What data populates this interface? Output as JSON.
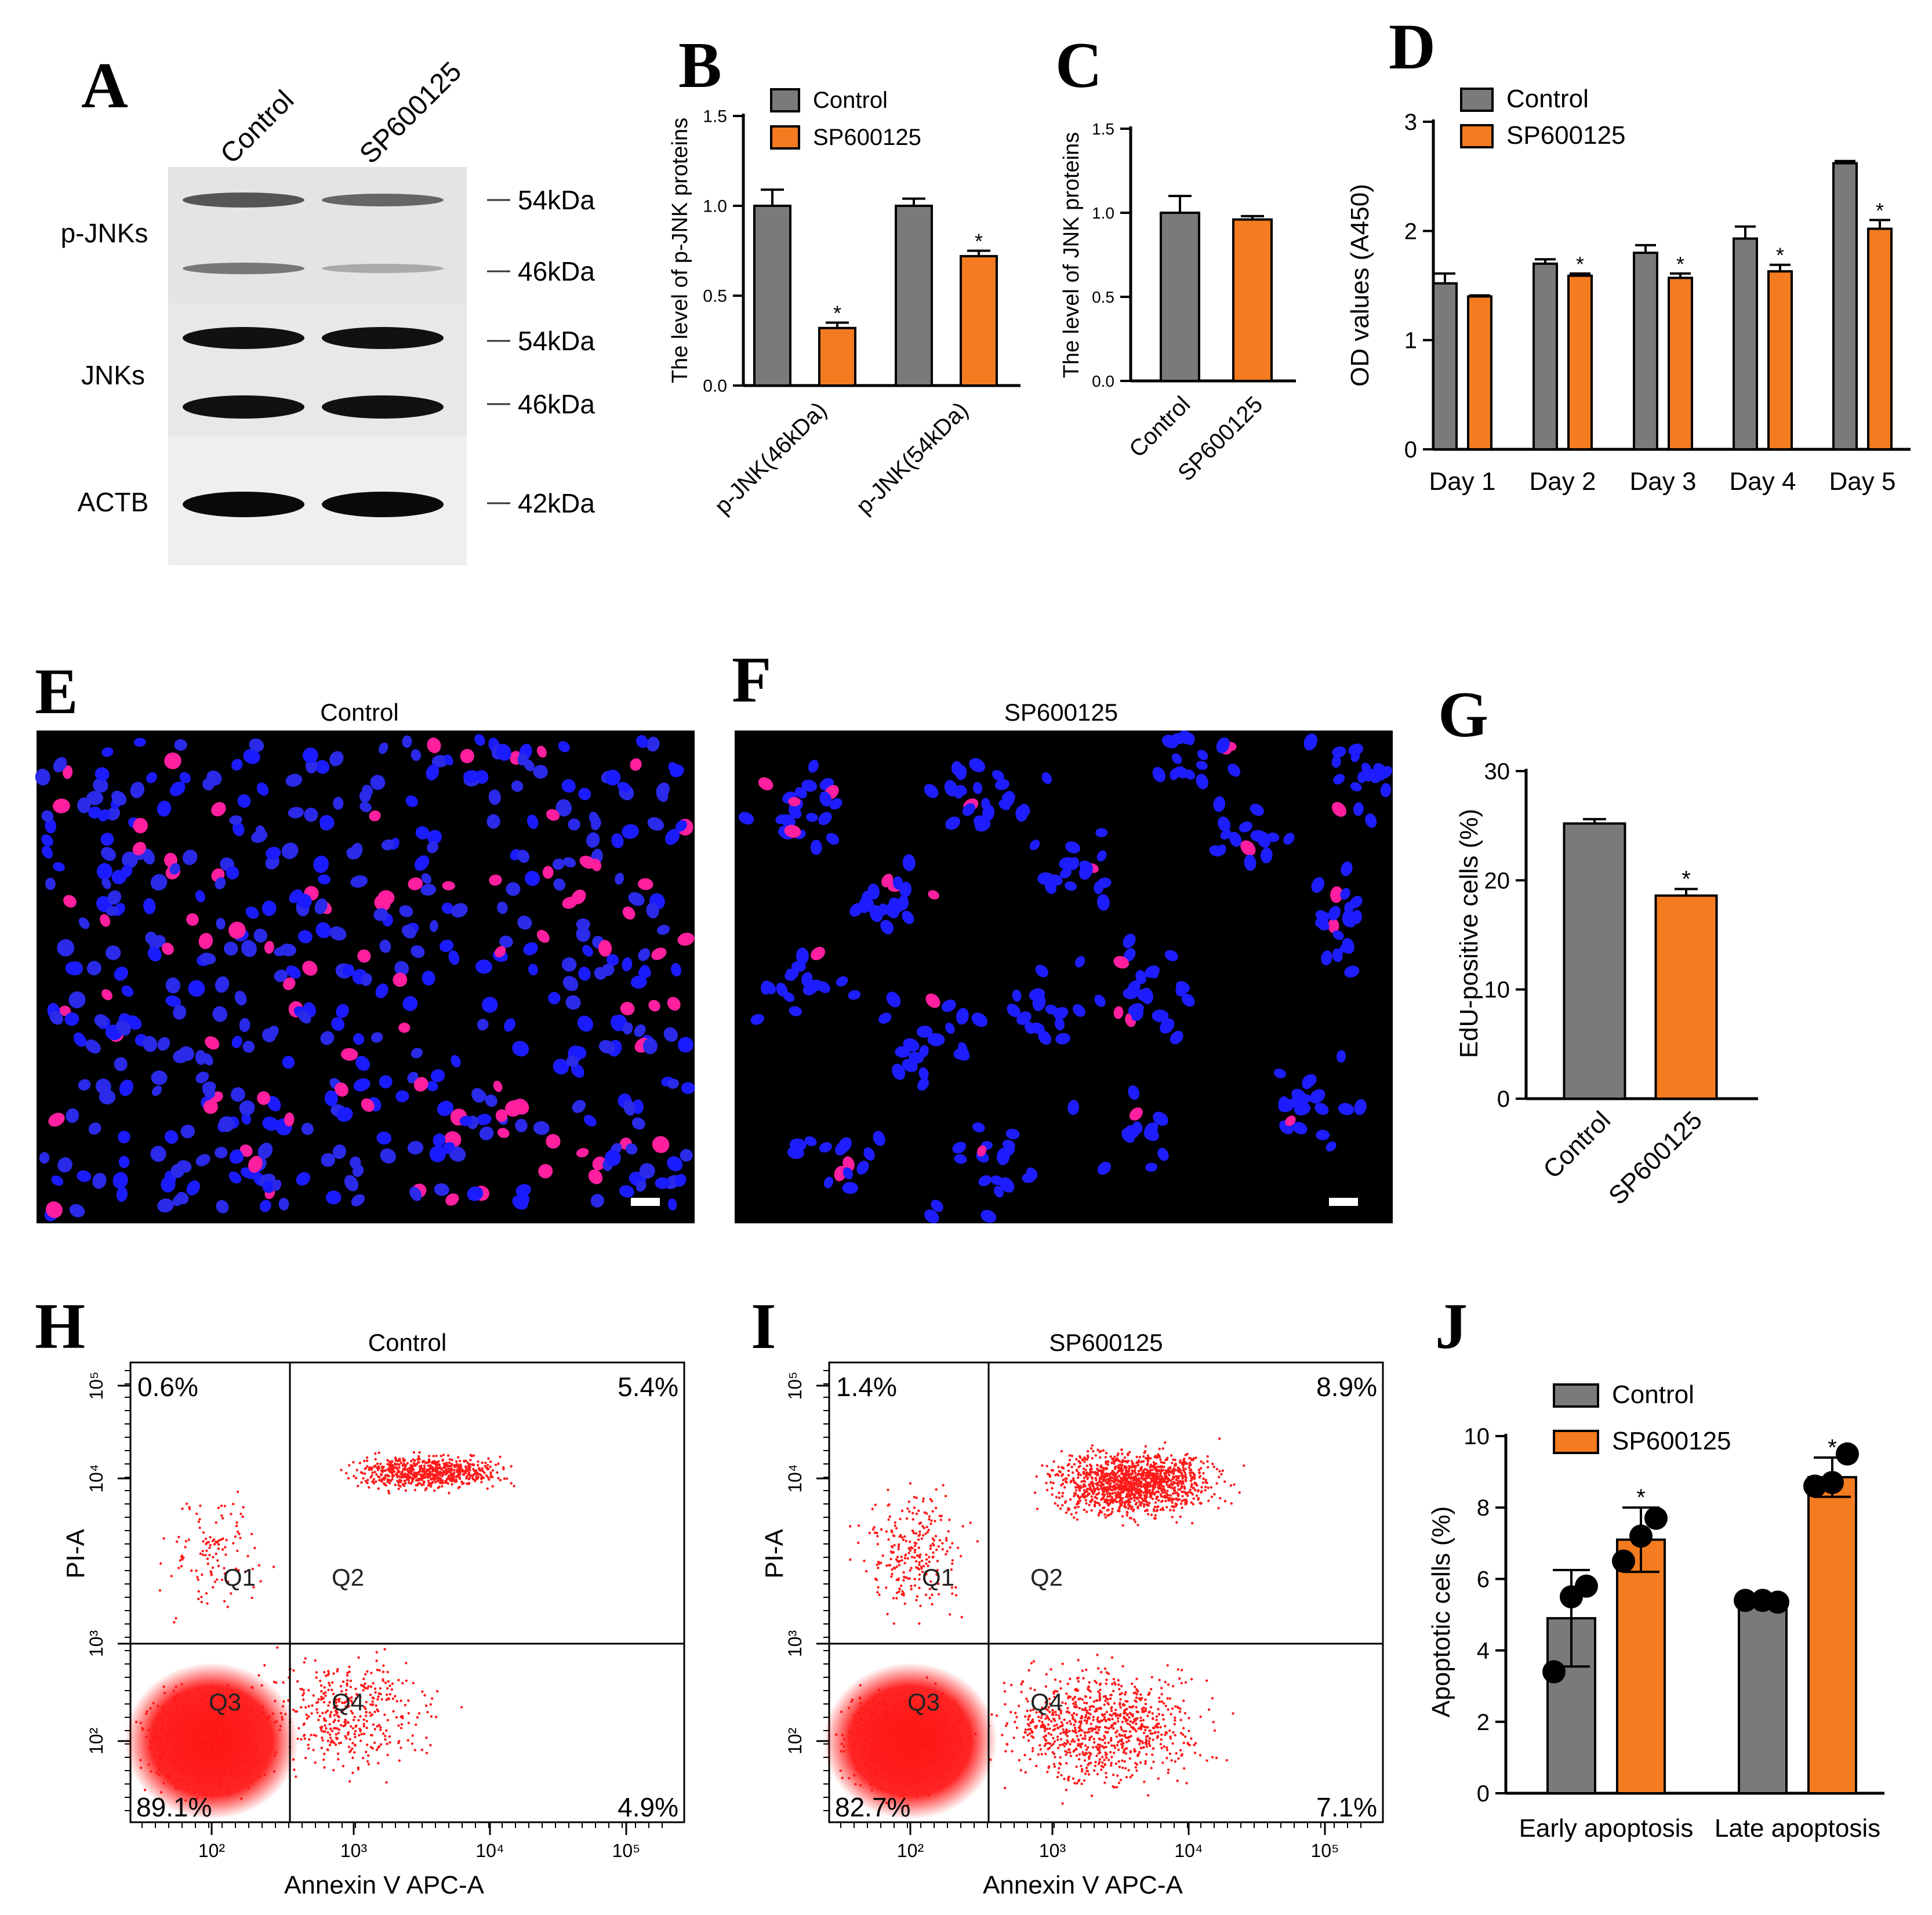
{
  "colors": {
    "control": "#7a7a7a",
    "treatment": "#f47b20",
    "scatter": "#ff1a1a",
    "black": "#000000"
  },
  "panels": {
    "A": {
      "letter": "A",
      "lanes": [
        "Control",
        "SP600125"
      ],
      "rows": [
        {
          "label": "p-JNKs",
          "markers": [
            "54kDa",
            "46kDa"
          ]
        },
        {
          "label": "JNKs",
          "markers": [
            "54kDa",
            "46kDa"
          ]
        },
        {
          "label": "ACTB",
          "markers": [
            "42kDa"
          ]
        }
      ]
    },
    "E": {
      "letter": "E",
      "title": "Control"
    },
    "F": {
      "letter": "F",
      "title": "SP600125"
    },
    "H": {
      "letter": "H"
    },
    "I": {
      "letter": "I"
    }
  },
  "chart_data": [
    {
      "panel": "B",
      "type": "bar",
      "title": "",
      "categories": [
        "p-JNK(46kDa)",
        "p-JNK(54kDa)"
      ],
      "series": [
        {
          "name": "Control",
          "values": [
            1.0,
            1.0
          ],
          "errors": [
            0.09,
            0.04
          ]
        },
        {
          "name": "SP600125",
          "values": [
            0.32,
            0.72
          ],
          "errors": [
            0.03,
            0.03
          ]
        }
      ],
      "significance": [
        "*",
        "*"
      ],
      "ylabel": "The level of p-JNK proteins",
      "ylim": [
        0,
        1.5
      ],
      "yticks": [
        0.0,
        0.5,
        1.0,
        1.5
      ],
      "ytick_labels": [
        "0.0",
        "0.5",
        "1.0",
        "1.5"
      ],
      "legend": "top-left"
    },
    {
      "panel": "C",
      "type": "bar",
      "categories": [
        "Control",
        "SP600125"
      ],
      "values": [
        1.0,
        0.96
      ],
      "errors": [
        0.1,
        0.02
      ],
      "ylabel": "The level of JNK proteins",
      "ylim": [
        0,
        1.5
      ],
      "yticks": [
        0.0,
        0.5,
        1.0,
        1.5
      ],
      "ytick_labels": [
        "0.0",
        "0.5",
        "1.0",
        "1.5"
      ]
    },
    {
      "panel": "D",
      "type": "bar",
      "categories": [
        "Day 1",
        "Day 2",
        "Day 3",
        "Day 4",
        "Day 5"
      ],
      "series": [
        {
          "name": "Control",
          "values": [
            1.52,
            1.7,
            1.8,
            1.93,
            2.62
          ],
          "errors": [
            0.09,
            0.04,
            0.07,
            0.11,
            0.02
          ]
        },
        {
          "name": "SP600125",
          "values": [
            1.4,
            1.59,
            1.57,
            1.63,
            2.02
          ],
          "errors": [
            0.01,
            0.02,
            0.04,
            0.06,
            0.08
          ]
        }
      ],
      "significance": [
        "",
        "*",
        "*",
        "*",
        "*"
      ],
      "ylabel": "OD values (A450)",
      "ylim": [
        0,
        3
      ],
      "yticks": [
        0,
        1,
        2,
        3
      ],
      "ytick_labels": [
        "0",
        "1",
        "2",
        "3"
      ],
      "legend": "top-left"
    },
    {
      "panel": "G",
      "type": "bar",
      "categories": [
        "Control",
        "SP600125"
      ],
      "values": [
        25.2,
        18.6
      ],
      "errors": [
        0.4,
        0.6
      ],
      "significance": [
        "",
        "*"
      ],
      "ylabel": "EdU-positive cells (%)",
      "ylim": [
        0,
        30
      ],
      "yticks": [
        0,
        10,
        20,
        30
      ],
      "ytick_labels": [
        "0",
        "10",
        "20",
        "30"
      ]
    },
    {
      "panel": "H",
      "type": "scatter",
      "title": "Control",
      "xlabel": "Annexin V APC-A",
      "ylabel": "PI-A",
      "quadrant_names": [
        "Q1",
        "Q2",
        "Q3",
        "Q4"
      ],
      "quadrant_percents": {
        "Q1": "0.6%",
        "Q2": "5.4%",
        "Q3": "89.1%",
        "Q4": "4.9%"
      },
      "xtick_labels": [
        "10²",
        "10³",
        "10⁴",
        "10⁵"
      ],
      "ytick_labels": [
        "10²",
        "10³",
        "10⁴",
        "10⁵"
      ]
    },
    {
      "panel": "I",
      "type": "scatter",
      "title": "SP600125",
      "xlabel": "Annexin V APC-A",
      "ylabel": "PI-A",
      "quadrant_names": [
        "Q1",
        "Q2",
        "Q3",
        "Q4"
      ],
      "quadrant_percents": {
        "Q1": "1.4%",
        "Q2": "8.9%",
        "Q3": "82.7%",
        "Q4": "7.1%"
      },
      "xtick_labels": [
        "10²",
        "10³",
        "10⁴",
        "10⁵"
      ],
      "ytick_labels": [
        "10²",
        "10³",
        "10⁴",
        "10⁵"
      ]
    },
    {
      "panel": "J",
      "type": "bar",
      "categories": [
        "Early apoptosis",
        "Late apoptosis"
      ],
      "series": [
        {
          "name": "Control",
          "values": [
            4.9,
            5.4
          ],
          "errors": [
            1.35,
            0.1
          ],
          "points": [
            [
              3.4,
              5.8,
              5.5
            ],
            [
              5.4,
              5.35,
              5.4
            ]
          ]
        },
        {
          "name": "SP600125",
          "values": [
            7.1,
            8.85
          ],
          "errors": [
            0.9,
            0.55
          ],
          "points": [
            [
              6.5,
              7.7,
              7.2
            ],
            [
              8.6,
              9.5,
              8.7
            ]
          ]
        }
      ],
      "significance": [
        "*",
        "*"
      ],
      "ylabel": "Apoptotic cells (%)",
      "ylim": [
        0,
        10
      ],
      "yticks": [
        0,
        2,
        4,
        6,
        8,
        10
      ],
      "ytick_labels": [
        "0",
        "2",
        "4",
        "6",
        "8",
        "10"
      ],
      "legend": "top-left"
    }
  ]
}
